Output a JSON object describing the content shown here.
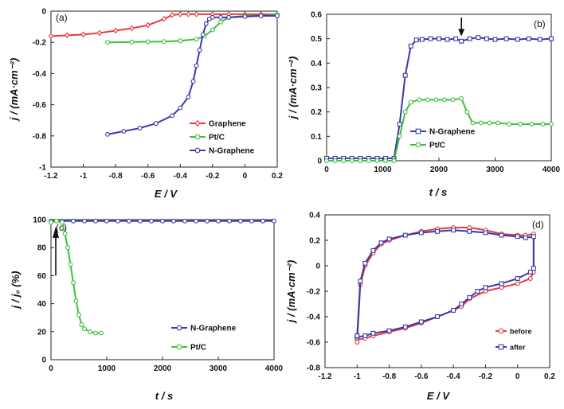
{
  "chart_data": [
    {
      "panel": "(a)",
      "type": "line",
      "xlabel": "E / V",
      "ylabel": "j / (mA·cm⁻²)",
      "xlim": [
        -1.2,
        0.2
      ],
      "ylim": [
        -1.0,
        0.0
      ],
      "xticks": [
        -1.2,
        -1,
        -0.8,
        -0.6,
        -0.4,
        -0.2,
        0,
        0.2
      ],
      "xtick_labels": [
        "-1.2",
        "-1",
        "-0.8",
        "-0.6",
        "-0.4",
        "-0.2",
        "0",
        "0.2"
      ],
      "yticks": [
        0,
        -0.2,
        -0.4,
        -0.6,
        -0.8,
        -1
      ],
      "ytick_labels": [
        "0",
        "-0.2",
        "-0.4",
        "-0.6",
        "-0.8",
        "-1"
      ],
      "legend_position": "bottom-right",
      "series": [
        {
          "name": "Graphene",
          "color": "#e8383d",
          "marker": "diamond",
          "x": [
            -1.2,
            -1.1,
            -1.0,
            -0.9,
            -0.8,
            -0.7,
            -0.6,
            -0.5,
            -0.45,
            -0.4,
            -0.35,
            -0.3,
            -0.2,
            -0.1,
            0.0,
            0.1,
            0.2
          ],
          "y": [
            -0.16,
            -0.155,
            -0.15,
            -0.14,
            -0.125,
            -0.11,
            -0.09,
            -0.05,
            -0.025,
            -0.02,
            -0.02,
            -0.02,
            -0.02,
            -0.02,
            -0.02,
            -0.02,
            -0.02
          ]
        },
        {
          "name": "Pt/C",
          "color": "#3fbf3f",
          "marker": "circle",
          "x": [
            -0.85,
            -0.7,
            -0.6,
            -0.5,
            -0.4,
            -0.3,
            -0.25,
            -0.2,
            -0.15,
            -0.1,
            0.0,
            0.1,
            0.2
          ],
          "y": [
            -0.2,
            -0.198,
            -0.196,
            -0.195,
            -0.19,
            -0.18,
            -0.16,
            -0.12,
            -0.07,
            -0.04,
            -0.03,
            -0.03,
            -0.02
          ]
        },
        {
          "name": "N-Graphene",
          "color": "#3a3aa8",
          "marker": "circle",
          "x": [
            -0.85,
            -0.75,
            -0.65,
            -0.55,
            -0.45,
            -0.4,
            -0.35,
            -0.32,
            -0.3,
            -0.28,
            -0.26,
            -0.24,
            -0.22,
            -0.2,
            -0.15,
            -0.1,
            0.0,
            0.1,
            0.2
          ],
          "y": [
            -0.79,
            -0.77,
            -0.75,
            -0.72,
            -0.67,
            -0.62,
            -0.55,
            -0.45,
            -0.35,
            -0.25,
            -0.15,
            -0.08,
            -0.05,
            -0.04,
            -0.04,
            -0.04,
            -0.035,
            -0.03,
            -0.03
          ]
        }
      ]
    },
    {
      "panel": "(b)",
      "type": "line",
      "xlabel": "t / s",
      "ylabel": "j / (mA·cm⁻²)",
      "xlim": [
        0,
        4000
      ],
      "ylim": [
        0,
        0.6
      ],
      "xticks": [
        0,
        1000,
        2000,
        3000,
        4000
      ],
      "xtick_labels": [
        "0",
        "1000",
        "2000",
        "3000",
        "4000"
      ],
      "yticks": [
        0,
        0.1,
        0.2,
        0.3,
        0.4,
        0.5,
        0.6
      ],
      "ytick_labels": [
        "0",
        "0.1",
        "0.2",
        "0.3",
        "0.4",
        "0.5",
        "0.6"
      ],
      "annotation": "down arrow at t≈2400 s",
      "arrow_x": 2400,
      "legend_position": "bottom-right",
      "series": [
        {
          "name": "N-Graphene",
          "color": "#3a3aa8",
          "marker": "square",
          "x": [
            0,
            150,
            300,
            450,
            600,
            750,
            900,
            1050,
            1200,
            1300,
            1400,
            1500,
            1600,
            1700,
            1850,
            2000,
            2150,
            2300,
            2400,
            2550,
            2700,
            2850,
            3000,
            3200,
            3400,
            3600,
            3800,
            4000
          ],
          "y": [
            0.01,
            0.01,
            0.01,
            0.01,
            0.01,
            0.01,
            0.01,
            0.01,
            0.01,
            0.15,
            0.35,
            0.47,
            0.495,
            0.497,
            0.5,
            0.5,
            0.497,
            0.5,
            0.49,
            0.5,
            0.505,
            0.5,
            0.497,
            0.5,
            0.497,
            0.5,
            0.497,
            0.5
          ]
        },
        {
          "name": "Pt/C",
          "color": "#3fbf3f",
          "marker": "circle",
          "x": [
            0,
            150,
            300,
            450,
            600,
            750,
            900,
            1050,
            1200,
            1300,
            1400,
            1500,
            1650,
            1800,
            1950,
            2100,
            2250,
            2400,
            2500,
            2600,
            2750,
            2900,
            3050,
            3250,
            3450,
            3650,
            3850,
            4000
          ],
          "y": [
            0.0,
            0.0,
            0.0,
            0.0,
            0.0,
            0.0,
            0.0,
            0.0,
            0.0,
            0.1,
            0.2,
            0.24,
            0.25,
            0.25,
            0.25,
            0.25,
            0.25,
            0.255,
            0.2,
            0.155,
            0.155,
            0.155,
            0.155,
            0.15,
            0.15,
            0.15,
            0.15,
            0.15
          ]
        }
      ]
    },
    {
      "panel": "(c)",
      "type": "line",
      "xlabel": "t / s",
      "ylabel": "j / j₀ (%)",
      "xlim": [
        0,
        4000
      ],
      "ylim": [
        0,
        100
      ],
      "xticks": [
        0,
        1000,
        2000,
        3000,
        4000
      ],
      "xtick_labels": [
        "0",
        "1000",
        "2000",
        "3000",
        "4000"
      ],
      "yticks": [
        0,
        20,
        40,
        60,
        80,
        100
      ],
      "ytick_labels": [
        "0",
        "20",
        "40",
        "60",
        "80",
        "100"
      ],
      "annotation": "up arrow at t≈200 s",
      "arrow_x": 200,
      "legend_position": "bottom-right",
      "series": [
        {
          "name": "N-Graphene",
          "color": "#3a3aa8",
          "marker": "circle",
          "x": [
            0,
            200,
            400,
            600,
            800,
            1000,
            1200,
            1400,
            1600,
            1800,
            2000,
            2200,
            2400,
            2600,
            2800,
            3000,
            3200,
            3400,
            3600,
            3800,
            4000
          ],
          "y": [
            99,
            99,
            99,
            99,
            99,
            99,
            99,
            99,
            99,
            99,
            99,
            99,
            99,
            99,
            99,
            99,
            99,
            99,
            99,
            99,
            99
          ]
        },
        {
          "name": "Pt/C",
          "color": "#3fbf3f",
          "marker": "circle",
          "x": [
            0,
            100,
            200,
            250,
            300,
            350,
            400,
            450,
            500,
            550,
            600,
            700,
            800,
            900
          ],
          "y": [
            98,
            99,
            98,
            90,
            80,
            68,
            55,
            42,
            32,
            25,
            22,
            20,
            19,
            19
          ]
        }
      ]
    },
    {
      "panel": "(d)",
      "type": "line",
      "xlabel": "E / V",
      "ylabel": "j / (mA·cm⁻²)",
      "xlim": [
        -1.2,
        0.2
      ],
      "ylim": [
        -0.8,
        0.4
      ],
      "xticks": [
        -1.2,
        -1,
        -0.8,
        -0.6,
        -0.4,
        -0.2,
        0,
        0.2
      ],
      "xtick_labels": [
        "-1.2",
        "-1",
        "-0.8",
        "-0.6",
        "-0.4",
        "-0.2",
        "0",
        "0.2"
      ],
      "yticks": [
        0.4,
        0.2,
        0,
        -0.2,
        -0.4,
        -0.6,
        -0.8
      ],
      "ytick_labels": [
        "0.4",
        "0.2",
        "0",
        "-0.2",
        "-0.4",
        "-0.6",
        "-0.8"
      ],
      "legend_position": "bottom-right",
      "series": [
        {
          "name": "before",
          "color": "#e8383d",
          "marker": "circle",
          "x": [
            -1.0,
            -0.98,
            -0.95,
            -0.9,
            -0.85,
            -0.8,
            -0.7,
            -0.6,
            -0.5,
            -0.4,
            -0.3,
            -0.2,
            -0.1,
            0.0,
            0.05,
            0.1,
            0.1,
            0.08,
            0.0,
            -0.1,
            -0.2,
            -0.3,
            -0.35,
            -0.4,
            -0.5,
            -0.6,
            -0.7,
            -0.8,
            -0.9,
            -0.95,
            -1.0,
            -1.0
          ],
          "y": [
            -0.6,
            -0.15,
            0.0,
            0.1,
            0.17,
            0.2,
            0.24,
            0.27,
            0.29,
            0.3,
            0.3,
            0.28,
            0.25,
            0.24,
            0.24,
            0.25,
            -0.05,
            -0.1,
            -0.14,
            -0.17,
            -0.2,
            -0.26,
            -0.32,
            -0.35,
            -0.4,
            -0.45,
            -0.49,
            -0.52,
            -0.55,
            -0.57,
            -0.58,
            -0.6
          ]
        },
        {
          "name": "after",
          "color": "#3a3aa8",
          "marker": "square",
          "x": [
            -1.0,
            -0.98,
            -0.95,
            -0.9,
            -0.85,
            -0.8,
            -0.7,
            -0.6,
            -0.5,
            -0.4,
            -0.3,
            -0.2,
            -0.1,
            0.0,
            0.05,
            0.1,
            0.1,
            0.08,
            0.0,
            -0.1,
            -0.2,
            -0.25,
            -0.3,
            -0.35,
            -0.4,
            -0.5,
            -0.6,
            -0.7,
            -0.8,
            -0.9,
            -0.95,
            -1.0,
            -1.0
          ],
          "y": [
            -0.55,
            -0.12,
            0.02,
            0.12,
            0.18,
            0.21,
            0.24,
            0.26,
            0.27,
            0.28,
            0.27,
            0.26,
            0.24,
            0.23,
            0.22,
            0.23,
            -0.02,
            -0.05,
            -0.1,
            -0.14,
            -0.17,
            -0.2,
            -0.25,
            -0.3,
            -0.35,
            -0.4,
            -0.44,
            -0.48,
            -0.51,
            -0.53,
            -0.55,
            -0.56,
            -0.55
          ]
        }
      ]
    }
  ]
}
